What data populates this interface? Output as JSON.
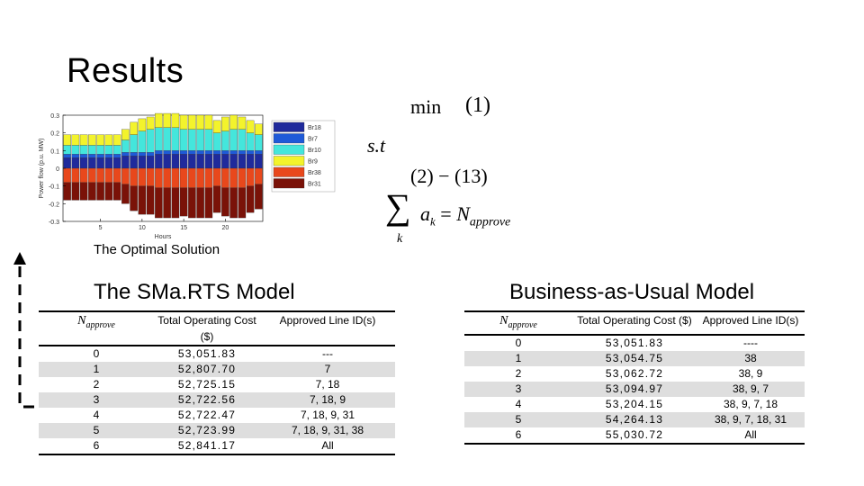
{
  "slide": {
    "title": "Results"
  },
  "figure": {
    "caption": "The Optimal Solution"
  },
  "formulation": {
    "objective_min": "min",
    "objective_ref": "(1)",
    "subject_to": "s.t",
    "constraints_ref": "(2) − (13)",
    "sum_symbol": "∑",
    "sum_index": "k",
    "sum_term": "a",
    "sum_term_sub": "k",
    "equals": "=",
    "rhs": "N",
    "rhs_sub": "approve"
  },
  "smarts": {
    "title": "The SMa.RTS Model",
    "napprove_label": "N",
    "napprove_sub": "approve",
    "col_cost": "Total Operating Cost ($)",
    "col_lines": "Approved Line ID(s)",
    "rows": [
      {
        "n": "0",
        "cost": "53,051.83",
        "lines": "---"
      },
      {
        "n": "1",
        "cost": "52,807.70",
        "lines": "7"
      },
      {
        "n": "2",
        "cost": "52,725.15",
        "lines": "7, 18"
      },
      {
        "n": "3",
        "cost": "52,722.56",
        "lines": "7, 18, 9"
      },
      {
        "n": "4",
        "cost": "52,722.47",
        "lines": "7, 18, 9, 31"
      },
      {
        "n": "5",
        "cost": "52,723.99",
        "lines": "7, 18, 9, 31, 38"
      },
      {
        "n": "6",
        "cost": "52,841.17",
        "lines": "All"
      }
    ]
  },
  "bau": {
    "title": "Business-as-Usual Model",
    "napprove_label": "N",
    "napprove_sub": "approve",
    "col_cost": "Total Operating Cost ($)",
    "col_lines": "Approved Line ID(s)",
    "rows": [
      {
        "n": "0",
        "cost": "53,051.83",
        "lines": "----"
      },
      {
        "n": "1",
        "cost": "53,054.75",
        "lines": "38"
      },
      {
        "n": "2",
        "cost": "53,062.72",
        "lines": "38, 9"
      },
      {
        "n": "3",
        "cost": "53,094.97",
        "lines": "38, 9, 7"
      },
      {
        "n": "4",
        "cost": "53,204.15",
        "lines": "38, 9, 7, 18"
      },
      {
        "n": "5",
        "cost": "54,264.13",
        "lines": "38, 9, 7, 18, 31"
      },
      {
        "n": "6",
        "cost": "55,030.72",
        "lines": "All"
      }
    ]
  },
  "chart_data": {
    "type": "bar",
    "stacked": true,
    "xlabel": "Hours",
    "ylabel": "Power flow (p.u. MW)",
    "ylim": [
      -0.3,
      0.3
    ],
    "yticks": [
      "0.3",
      "0.2",
      "0.1",
      "0",
      "-0.1",
      "-0.2",
      "-0.3"
    ],
    "xticks": [
      "5",
      "10",
      "15",
      "20"
    ],
    "categories": [
      "1",
      "2",
      "3",
      "4",
      "5",
      "6",
      "7",
      "8",
      "9",
      "10",
      "11",
      "12",
      "13",
      "14",
      "15",
      "16",
      "17",
      "18",
      "19",
      "20",
      "21",
      "22",
      "23",
      "24"
    ],
    "legend_position": "right",
    "series": [
      {
        "name": "Br18",
        "color": "#1f2a9c",
        "values": [
          0.06,
          0.06,
          0.06,
          0.06,
          0.06,
          0.06,
          0.06,
          0.07,
          0.07,
          0.07,
          0.07,
          0.08,
          0.08,
          0.08,
          0.08,
          0.08,
          0.08,
          0.08,
          0.08,
          0.08,
          0.08,
          0.08,
          0.08,
          0.08
        ]
      },
      {
        "name": "Br7",
        "color": "#1f5ad8",
        "values": [
          0.02,
          0.02,
          0.02,
          0.02,
          0.02,
          0.02,
          0.02,
          0.02,
          0.02,
          0.02,
          0.02,
          0.02,
          0.02,
          0.02,
          0.02,
          0.02,
          0.02,
          0.02,
          0.02,
          0.02,
          0.02,
          0.02,
          0.02,
          0.02
        ]
      },
      {
        "name": "Br10",
        "color": "#44e6dc",
        "values": [
          0.05,
          0.05,
          0.05,
          0.05,
          0.05,
          0.05,
          0.05,
          0.07,
          0.1,
          0.12,
          0.13,
          0.13,
          0.13,
          0.13,
          0.12,
          0.12,
          0.12,
          0.12,
          0.1,
          0.11,
          0.12,
          0.12,
          0.1,
          0.09
        ]
      },
      {
        "name": "Br9",
        "color": "#f3f32c",
        "values": [
          0.06,
          0.06,
          0.06,
          0.06,
          0.06,
          0.06,
          0.06,
          0.06,
          0.07,
          0.07,
          0.07,
          0.08,
          0.08,
          0.08,
          0.08,
          0.08,
          0.08,
          0.08,
          0.07,
          0.08,
          0.08,
          0.07,
          0.07,
          0.06
        ]
      },
      {
        "name": "Br38",
        "color": "#e8481c",
        "values": [
          -0.08,
          -0.08,
          -0.08,
          -0.08,
          -0.08,
          -0.08,
          -0.08,
          -0.09,
          -0.1,
          -0.1,
          -0.1,
          -0.11,
          -0.11,
          -0.11,
          -0.11,
          -0.11,
          -0.11,
          -0.11,
          -0.1,
          -0.11,
          -0.11,
          -0.11,
          -0.1,
          -0.09
        ]
      },
      {
        "name": "Br31",
        "color": "#7a1208",
        "values": [
          -0.1,
          -0.1,
          -0.1,
          -0.1,
          -0.1,
          -0.1,
          -0.1,
          -0.11,
          -0.14,
          -0.16,
          -0.16,
          -0.17,
          -0.17,
          -0.17,
          -0.16,
          -0.17,
          -0.17,
          -0.17,
          -0.15,
          -0.16,
          -0.17,
          -0.17,
          -0.15,
          -0.14
        ]
      }
    ]
  }
}
